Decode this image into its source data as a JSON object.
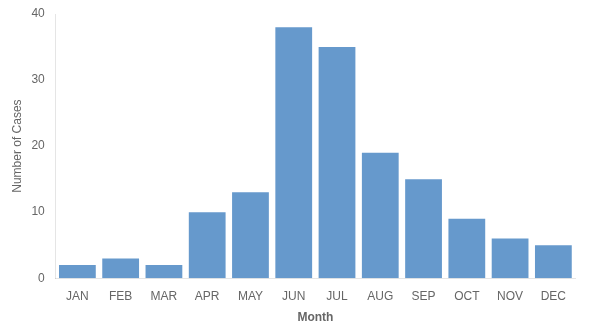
{
  "chart_data": {
    "type": "bar",
    "categories": [
      "JAN",
      "FEB",
      "MAR",
      "APR",
      "MAY",
      "JUN",
      "JUL",
      "AUG",
      "SEP",
      "OCT",
      "NOV",
      "DEC"
    ],
    "values": [
      2,
      3,
      2,
      10,
      13,
      38,
      35,
      19,
      15,
      9,
      6,
      5
    ],
    "color": "#6699CC",
    "xlabel": "Month",
    "ylabel": "Number of Cases",
    "ylim": [
      0,
      40
    ],
    "yticks": [
      0,
      10,
      20,
      30,
      40
    ],
    "grid": false
  }
}
